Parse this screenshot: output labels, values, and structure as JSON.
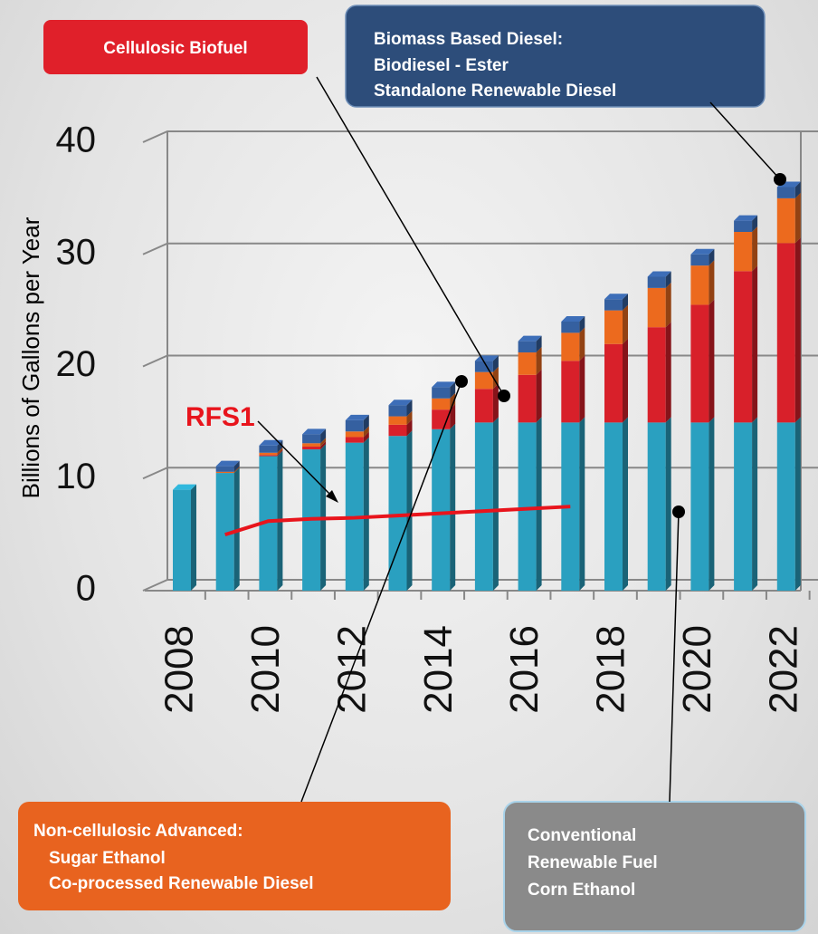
{
  "chart_data": {
    "type": "bar",
    "stacked": true,
    "y_label": "Billions of Gallons per Year",
    "categories": [
      "2008",
      null,
      "2010",
      null,
      "2012",
      null,
      "2014",
      null,
      "2016",
      null,
      "2018",
      null,
      "2020",
      null,
      "2022"
    ],
    "ylim": [
      0,
      40
    ],
    "yticks": [
      0,
      10,
      20,
      30,
      40
    ],
    "grid": true,
    "series": [
      {
        "name": "Conventional",
        "details": [
          "Renewable Fuel",
          "Corn Ethanol"
        ],
        "color": "#2aa0c0",
        "values": [
          9,
          10.5,
          12,
          12.6,
          13.2,
          13.8,
          14.4,
          15,
          15,
          15,
          15,
          15,
          15,
          15,
          15
        ]
      },
      {
        "name": "Cellulosic Biofuel",
        "details": [],
        "color": "#d8202a",
        "values": [
          0,
          0,
          0.1,
          0.25,
          0.5,
          1,
          1.75,
          3,
          4.25,
          5.5,
          7,
          8.5,
          10.5,
          13.5,
          16
        ]
      },
      {
        "name": "Non-cellulosic Advanced:",
        "details": [
          "Sugar Ethanol",
          "Co-processed Renewable Diesel"
        ],
        "color": "#ec6a1e",
        "values": [
          0,
          0.1,
          0.2,
          0.3,
          0.5,
          0.75,
          1,
          1.5,
          2,
          2.5,
          3,
          3.5,
          3.5,
          3.5,
          4
        ]
      },
      {
        "name": "Biomass Based Diesel:",
        "details": [
          "Biodiesel - Ester",
          "Standalone Renewable Diesel"
        ],
        "color": "#3560a0",
        "values": [
          0,
          0.5,
          0.65,
          0.8,
          1,
          1,
          1,
          1,
          1,
          1,
          1,
          1,
          1,
          1,
          1
        ]
      },
      {
        "name": "RFS1",
        "type": "line",
        "details": [],
        "color": "#e8141c",
        "values": [
          null,
          5.0,
          6.2,
          6.4,
          6.5,
          6.7,
          6.9,
          7.1,
          7.3,
          7.5,
          null,
          null,
          null,
          null,
          null
        ]
      }
    ]
  }
}
